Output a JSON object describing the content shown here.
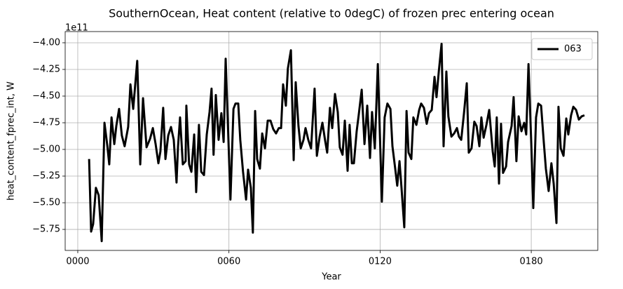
{
  "chart_data": {
    "type": "line",
    "title": "SouthernOcean, Heat content (relative to 0degC) of frozen prec entering ocean",
    "x_label": "Year",
    "y_label": "heat_content_fprec_int, W",
    "y_offset_label": "1e11",
    "grid": true,
    "legend": "upper right",
    "xlim": [
      -5.0,
      206.4
    ],
    "ylim": [
      -5.947,
      -3.895
    ],
    "xticks": [
      {
        "value": 0,
        "label": "0000"
      },
      {
        "value": 60,
        "label": "0060"
      },
      {
        "value": 120,
        "label": "0120"
      },
      {
        "value": 180,
        "label": "0180"
      }
    ],
    "yticks": [
      {
        "value": -4,
        "label": "−4.00"
      },
      {
        "value": -4.25,
        "label": "−4.25"
      },
      {
        "value": -4.5,
        "label": "−4.50"
      },
      {
        "value": -4.75,
        "label": "−4.75"
      },
      {
        "value": -5,
        "label": "−5.00"
      },
      {
        "value": -5.25,
        "label": "−5.25"
      },
      {
        "value": -5.5,
        "label": "−5.50"
      },
      {
        "value": -5.75,
        "label": "−5.75"
      }
    ],
    "x": [
      4.5,
      5.3,
      6.1,
      7.2,
      8.3,
      9.5,
      10.6,
      11.7,
      12.5,
      13.4,
      14.5,
      15.3,
      16.4,
      17.5,
      18.6,
      20.0,
      20.9,
      22.0,
      23.6,
      24.8,
      25.9,
      27.3,
      28.7,
      29.8,
      30.9,
      32.0,
      32.8,
      33.9,
      34.8,
      35.9,
      37.0,
      38.1,
      39.2,
      39.8,
      40.6,
      41.7,
      42.8,
      43.1,
      44.2,
      45.1,
      46.2,
      47.0,
      48.1,
      49.0,
      50.1,
      51.2,
      52.3,
      53.1,
      53.9,
      54.8,
      55.9,
      57.0,
      57.9,
      58.7,
      59.8,
      60.6,
      61.8,
      62.6,
      63.7,
      64.5,
      65.6,
      66.8,
      67.6,
      68.7,
      69.5,
      70.4,
      71.2,
      72.3,
      73.2,
      74.3,
      75.4,
      76.5,
      77.6,
      78.7,
      79.8,
      80.7,
      81.5,
      82.6,
      83.4,
      84.6,
      85.7,
      86.5,
      87.6,
      88.5,
      89.6,
      90.4,
      91.5,
      92.6,
      94.0,
      94.9,
      96.0,
      97.1,
      98.2,
      99.0,
      100.1,
      101.0,
      102.1,
      103.2,
      104.0,
      105.1,
      106.0,
      107.1,
      107.9,
      108.8,
      109.6,
      110.7,
      111.5,
      112.7,
      113.8,
      114.9,
      116.0,
      116.8,
      117.9,
      119.1,
      120.7,
      121.8,
      122.9,
      124.1,
      124.9,
      126.0,
      126.8,
      127.7,
      128.5,
      129.6,
      130.5,
      131.3,
      132.4,
      133.2,
      134.4,
      135.5,
      136.3,
      137.4,
      138.5,
      139.4,
      140.5,
      141.6,
      142.4,
      143.3,
      144.4,
      145.2,
      146.3,
      147.1,
      148.3,
      149.4,
      150.5,
      151.3,
      152.2,
      153.3,
      154.4,
      155.2,
      156.3,
      157.4,
      158.3,
      159.4,
      160.2,
      161.1,
      162.2,
      163.3,
      164.7,
      165.5,
      166.3,
      167.2,
      168.0,
      168.8,
      170.0,
      170.8,
      172.2,
      173.0,
      174.1,
      175.0,
      176.1,
      177.2,
      178.0,
      178.9,
      180.0,
      180.8,
      181.9,
      182.8,
      183.9,
      185.0,
      185.8,
      186.9,
      188.0,
      188.9,
      190.0,
      190.8,
      191.7,
      192.8,
      193.9,
      194.7,
      195.8,
      196.7,
      197.8,
      198.9,
      200.0,
      201.1
    ],
    "series": [
      {
        "name": "063",
        "color": "#000000",
        "values": [
          -5.09,
          -5.77,
          -5.7,
          -5.36,
          -5.43,
          -5.86,
          -4.75,
          -4.96,
          -5.14,
          -4.7,
          -4.95,
          -4.78,
          -4.62,
          -4.87,
          -4.97,
          -4.79,
          -4.39,
          -4.62,
          -4.17,
          -5.14,
          -4.52,
          -4.98,
          -4.9,
          -4.8,
          -4.95,
          -5.13,
          -5.02,
          -4.61,
          -5.09,
          -4.87,
          -4.79,
          -4.91,
          -5.31,
          -4.97,
          -4.7,
          -5.14,
          -5.11,
          -4.59,
          -5.14,
          -5.21,
          -4.86,
          -5.4,
          -4.77,
          -5.21,
          -5.24,
          -4.86,
          -4.65,
          -4.43,
          -5.05,
          -4.49,
          -4.91,
          -4.66,
          -4.93,
          -4.15,
          -4.91,
          -5.47,
          -4.62,
          -4.57,
          -4.57,
          -4.91,
          -5.21,
          -5.47,
          -5.19,
          -5.36,
          -5.78,
          -4.64,
          -5.09,
          -5.18,
          -4.85,
          -4.99,
          -4.73,
          -4.73,
          -4.81,
          -4.85,
          -4.8,
          -4.8,
          -4.39,
          -4.59,
          -4.24,
          -4.07,
          -5.1,
          -4.37,
          -4.78,
          -4.99,
          -4.91,
          -4.8,
          -4.91,
          -4.99,
          -4.43,
          -5.06,
          -4.88,
          -4.75,
          -4.92,
          -5.03,
          -4.61,
          -4.8,
          -4.48,
          -4.65,
          -4.98,
          -5.05,
          -4.73,
          -5.2,
          -4.77,
          -5.13,
          -5.13,
          -4.83,
          -4.68,
          -4.44,
          -4.95,
          -4.59,
          -5.08,
          -4.65,
          -4.99,
          -4.2,
          -5.49,
          -4.7,
          -4.57,
          -4.62,
          -4.97,
          -5.18,
          -5.34,
          -5.11,
          -5.36,
          -5.73,
          -4.64,
          -5.03,
          -5.09,
          -4.7,
          -4.77,
          -4.63,
          -4.57,
          -4.61,
          -4.76,
          -4.66,
          -4.63,
          -4.32,
          -4.51,
          -4.27,
          -4.01,
          -4.97,
          -4.27,
          -4.69,
          -4.88,
          -4.85,
          -4.8,
          -4.88,
          -4.91,
          -4.66,
          -4.38,
          -5.03,
          -4.99,
          -4.74,
          -4.78,
          -4.97,
          -4.7,
          -4.89,
          -4.77,
          -4.63,
          -5.02,
          -5.16,
          -4.7,
          -5.32,
          -4.76,
          -5.22,
          -5.16,
          -4.93,
          -4.78,
          -4.51,
          -5.11,
          -4.69,
          -4.83,
          -4.75,
          -4.86,
          -4.2,
          -4.94,
          -5.55,
          -4.7,
          -4.57,
          -4.59,
          -4.94,
          -5.18,
          -5.39,
          -5.13,
          -5.32,
          -5.69,
          -4.6,
          -4.99,
          -5.06,
          -4.71,
          -4.86,
          -4.68,
          -4.6,
          -4.63,
          -4.72,
          -4.69,
          -4.68
        ]
      }
    ]
  }
}
